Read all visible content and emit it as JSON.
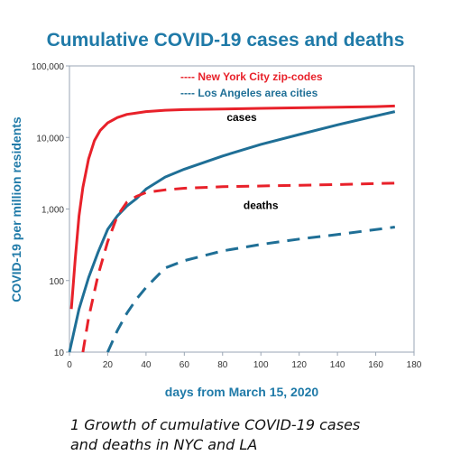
{
  "caption": "1 Growth of cumulative COVID-19 cases and deaths in NYC and LA",
  "colors": {
    "title": "#1f7aa8",
    "nyc": "#e8212a",
    "la": "#1f6f96",
    "frame": "#9aa6b4"
  },
  "chart_data": {
    "type": "line",
    "title": "Cumulative COVID-19 cases and deaths",
    "xlabel": "days from March 15, 2020",
    "ylabel": "COVID-19 per million residents",
    "xlim": [
      0,
      180
    ],
    "ylim": [
      10,
      100000
    ],
    "yscale": "log",
    "grid": false,
    "legend_position": "top-right",
    "x_ticks": [
      "0",
      "20",
      "40",
      "60",
      "80",
      "100",
      "120",
      "140",
      "160",
      "180"
    ],
    "y_ticks": [
      "10",
      "100",
      "1,000",
      "10,000",
      "100,000"
    ],
    "legend": [
      {
        "label": "---- New York City zip-codes",
        "series": "nyc"
      },
      {
        "label": "---- Los Angeles area cities",
        "series": "la"
      }
    ],
    "annotations": [
      {
        "text": "cases",
        "x": 90,
        "y": 17000
      },
      {
        "text": "deaths",
        "x": 100,
        "y": 1000
      }
    ],
    "series": [
      {
        "key": "nyc",
        "group": "cases",
        "style": "solid",
        "x": [
          1,
          3,
          5,
          7,
          10,
          13,
          16,
          20,
          25,
          30,
          40,
          50,
          60,
          80,
          100,
          120,
          140,
          160,
          170
        ],
        "y": [
          40,
          200,
          800,
          2000,
          5000,
          9000,
          12500,
          16000,
          19000,
          21000,
          23000,
          24000,
          24500,
          25000,
          25500,
          26000,
          26500,
          27000,
          27500
        ]
      },
      {
        "key": "la",
        "group": "cases",
        "style": "solid",
        "x": [
          0,
          5,
          10,
          15,
          20,
          25,
          30,
          35,
          40,
          50,
          60,
          80,
          100,
          120,
          140,
          160,
          170
        ],
        "y": [
          10,
          40,
          110,
          250,
          520,
          800,
          1100,
          1400,
          1900,
          2800,
          3600,
          5500,
          8000,
          11000,
          15000,
          20000,
          23000
        ]
      },
      {
        "key": "nyc",
        "group": "deaths",
        "style": "dashed",
        "x": [
          7,
          10,
          15,
          20,
          25,
          30,
          35,
          40,
          50,
          60,
          80,
          100,
          120,
          140,
          170
        ],
        "y": [
          10,
          30,
          120,
          350,
          800,
          1250,
          1500,
          1700,
          1850,
          1950,
          2050,
          2100,
          2150,
          2200,
          2300
        ]
      },
      {
        "key": "la",
        "group": "deaths",
        "style": "dashed",
        "x": [
          20,
          25,
          30,
          35,
          40,
          50,
          60,
          80,
          100,
          120,
          140,
          170
        ],
        "y": [
          10,
          20,
          35,
          55,
          80,
          150,
          190,
          260,
          320,
          380,
          440,
          560
        ]
      }
    ]
  }
}
